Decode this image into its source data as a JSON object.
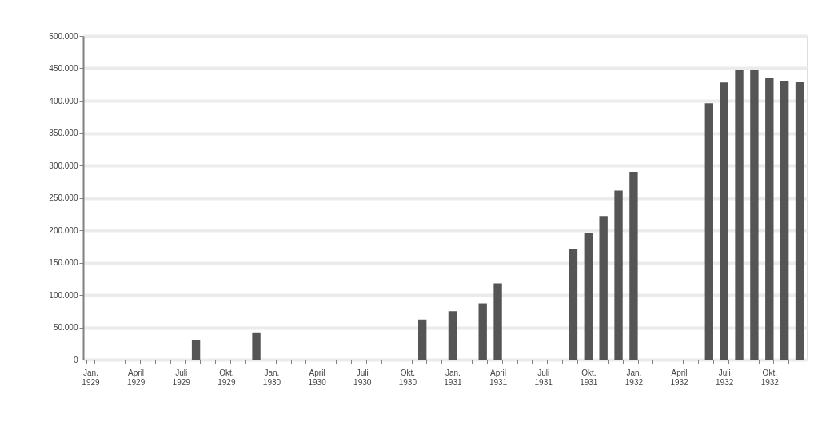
{
  "chart_data": {
    "type": "bar",
    "categories": [
      "Jan. 1929",
      null,
      null,
      "April 1929",
      null,
      null,
      "Juli 1929",
      null,
      null,
      "Okt. 1929",
      null,
      null,
      "Jan. 1930",
      null,
      null,
      "April 1930",
      null,
      null,
      "Juli 1930",
      null,
      null,
      "Okt. 1930",
      null,
      null,
      "Jan. 1931",
      null,
      null,
      "April 1931",
      null,
      null,
      "Juli 1931",
      null,
      null,
      "Okt. 1931",
      null,
      null,
      "Jan. 1932",
      null,
      null,
      "April 1932",
      null,
      null,
      "Juli 1932",
      null,
      null,
      "Okt. 1932",
      null,
      null
    ],
    "values": [
      null,
      null,
      null,
      null,
      null,
      null,
      null,
      30000,
      null,
      null,
      null,
      41000,
      null,
      null,
      null,
      null,
      null,
      null,
      null,
      null,
      null,
      null,
      62000,
      null,
      75000,
      null,
      87000,
      118000,
      null,
      null,
      null,
      null,
      171000,
      196000,
      222000,
      261000,
      290000,
      null,
      null,
      null,
      null,
      396000,
      428000,
      448000,
      448000,
      435000,
      431000,
      429000
    ],
    "color": "#555555",
    "ylim": [
      0,
      500000
    ],
    "yticks": [
      0,
      {
        "value": 50000,
        "label": "50.000"
      },
      {
        "value": 100000,
        "label": "100.000"
      },
      {
        "value": 150000,
        "label": "150.000"
      },
      {
        "value": 200000,
        "label": "200.000"
      },
      {
        "value": 250000,
        "label": "250.000"
      },
      {
        "value": 300000,
        "label": "300.000"
      },
      {
        "value": 350000,
        "label": "350.000"
      },
      {
        "value": 400000,
        "label": "400.000"
      },
      {
        "value": 450000,
        "label": "450.000"
      },
      {
        "value": 500000,
        "label": "500.000"
      }
    ],
    "grid": "y"
  }
}
